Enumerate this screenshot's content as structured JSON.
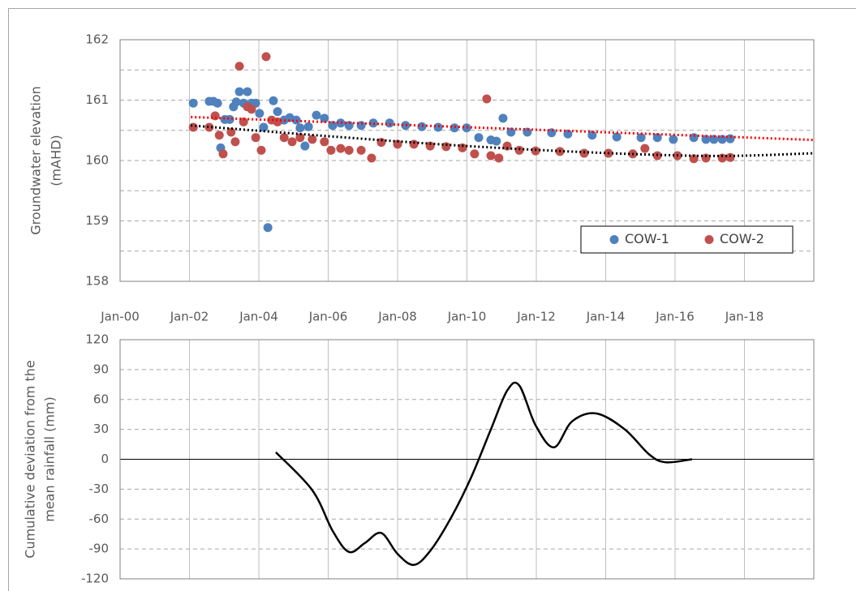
{
  "chart_data": [
    {
      "type": "scatter",
      "ylabel": [
        "Groundwater elevation",
        "(mAHD)"
      ],
      "xlim": [
        2000,
        2020
      ],
      "xticks": [
        {
          "value": 2000,
          "label": "Jan-00"
        },
        {
          "value": 2002,
          "label": "Jan-02"
        },
        {
          "value": 2004,
          "label": "Jan-04"
        },
        {
          "value": 2006,
          "label": "Jan-06"
        },
        {
          "value": 2008,
          "label": "Jan-08"
        },
        {
          "value": 2010,
          "label": "Jan-10"
        },
        {
          "value": 2012,
          "label": "Jan-12"
        },
        {
          "value": 2014,
          "label": "Jan-14"
        },
        {
          "value": 2016,
          "label": "Jan-16"
        },
        {
          "value": 2018,
          "label": "Jan-18"
        }
      ],
      "ylim": [
        158,
        162
      ],
      "yticks": [
        158,
        159,
        160,
        161,
        162
      ],
      "minor_yticks": [
        158.5,
        159.5,
        160.5,
        161.5
      ],
      "legend": "lower right",
      "series": [
        {
          "name": "COW-1",
          "color": "#4f81bd",
          "x": [
            2002.11,
            2002.57,
            2002.69,
            2002.81,
            2002.9,
            2003.02,
            2003.16,
            2003.27,
            2003.35,
            2003.44,
            2003.56,
            2003.67,
            2003.79,
            2003.91,
            2004.02,
            2004.14,
            2004.26,
            2004.42,
            2004.54,
            2004.73,
            2004.89,
            2005.08,
            2005.19,
            2005.33,
            2005.43,
            2005.66,
            2005.89,
            2006.13,
            2006.36,
            2006.6,
            2006.95,
            2007.3,
            2007.77,
            2008.23,
            2008.7,
            2009.17,
            2009.64,
            2009.99,
            2010.34,
            2010.69,
            2010.85,
            2011.04,
            2011.27,
            2011.74,
            2012.44,
            2012.91,
            2013.61,
            2014.32,
            2015.02,
            2015.49,
            2015.95,
            2016.54,
            2016.89,
            2017.12,
            2017.36,
            2017.59
          ],
          "values": [
            160.95,
            160.98,
            160.98,
            160.95,
            160.21,
            160.68,
            160.68,
            160.89,
            160.97,
            161.14,
            160.95,
            161.14,
            160.95,
            160.95,
            160.78,
            160.55,
            158.89,
            160.99,
            160.81,
            160.67,
            160.71,
            160.67,
            160.54,
            160.24,
            160.56,
            160.75,
            160.7,
            160.58,
            160.62,
            160.58,
            160.58,
            160.62,
            160.62,
            160.58,
            160.56,
            160.55,
            160.54,
            160.54,
            160.38,
            160.34,
            160.32,
            160.7,
            160.47,
            160.47,
            160.46,
            160.44,
            160.42,
            160.39,
            160.38,
            160.38,
            160.35,
            160.38,
            160.35,
            160.35,
            160.35,
            160.36
          ]
        },
        {
          "name": "COW-2",
          "color": "#c0504d",
          "x": [
            2002.11,
            2002.57,
            2002.74,
            2002.86,
            2002.97,
            2003.2,
            2003.32,
            2003.44,
            2003.56,
            2003.67,
            2003.79,
            2003.91,
            2004.07,
            2004.21,
            2004.37,
            2004.54,
            2004.73,
            2004.96,
            2005.19,
            2005.54,
            2005.89,
            2006.08,
            2006.36,
            2006.6,
            2006.95,
            2007.25,
            2007.53,
            2008.0,
            2008.47,
            2008.94,
            2009.4,
            2009.87,
            2010.22,
            2010.57,
            2010.69,
            2010.92,
            2011.16,
            2011.51,
            2011.98,
            2012.68,
            2013.38,
            2014.08,
            2014.78,
            2015.13,
            2015.49,
            2016.07,
            2016.54,
            2016.89,
            2017.36,
            2017.59
          ],
          "values": [
            160.55,
            160.55,
            160.74,
            160.42,
            160.11,
            160.47,
            160.31,
            161.56,
            160.64,
            160.89,
            160.85,
            160.38,
            160.17,
            161.72,
            160.67,
            160.64,
            160.38,
            160.31,
            160.38,
            160.35,
            160.31,
            160.17,
            160.2,
            160.17,
            160.17,
            160.04,
            160.3,
            160.27,
            160.27,
            160.24,
            160.23,
            160.21,
            160.11,
            161.02,
            160.08,
            160.04,
            160.24,
            160.17,
            160.16,
            160.15,
            160.12,
            160.12,
            160.11,
            160.2,
            160.08,
            160.08,
            160.03,
            160.04,
            160.04,
            160.05
          ]
        },
        {
          "color": "#ff0000",
          "dash": "dotted",
          "x": [
            2002.04,
            2020
          ],
          "values": [
            160.72,
            160.34
          ]
        },
        {
          "color": "#000000",
          "dash": "dotted",
          "x": [
            2002.04,
            2010,
            2016.42,
            2020
          ],
          "values": [
            160.58,
            160.24,
            160.08,
            160.12
          ]
        }
      ]
    },
    {
      "type": "line",
      "ylabel": [
        "Cumulative deviation from the",
        "mean rainfall (mm)"
      ],
      "xlim": [
        2000,
        2020
      ],
      "xticks": [
        2000,
        2002,
        2004,
        2006,
        2008,
        2010,
        2012,
        2014,
        2016,
        2018
      ],
      "ylim": [
        -120,
        120
      ],
      "yticks": [
        -120,
        -90,
        -60,
        -30,
        0,
        30,
        60,
        90,
        120
      ],
      "series": [
        {
          "color": "#000000",
          "x": [
            2004.49,
            2005.54,
            2006.13,
            2006.6,
            2007.06,
            2007.53,
            2008.0,
            2008.47,
            2008.94,
            2009.52,
            2010.11,
            2010.69,
            2011.16,
            2011.51,
            2011.98,
            2012.51,
            2013.03,
            2013.73,
            2014.55,
            2015.25,
            2015.72,
            2016.49
          ],
          "values": [
            7,
            -31,
            -72,
            -93,
            -84,
            -74,
            -95,
            -106,
            -92,
            -60,
            -19,
            30,
            69,
            74,
            34,
            12,
            38,
            46,
            30,
            5,
            -3,
            0
          ]
        }
      ]
    }
  ]
}
